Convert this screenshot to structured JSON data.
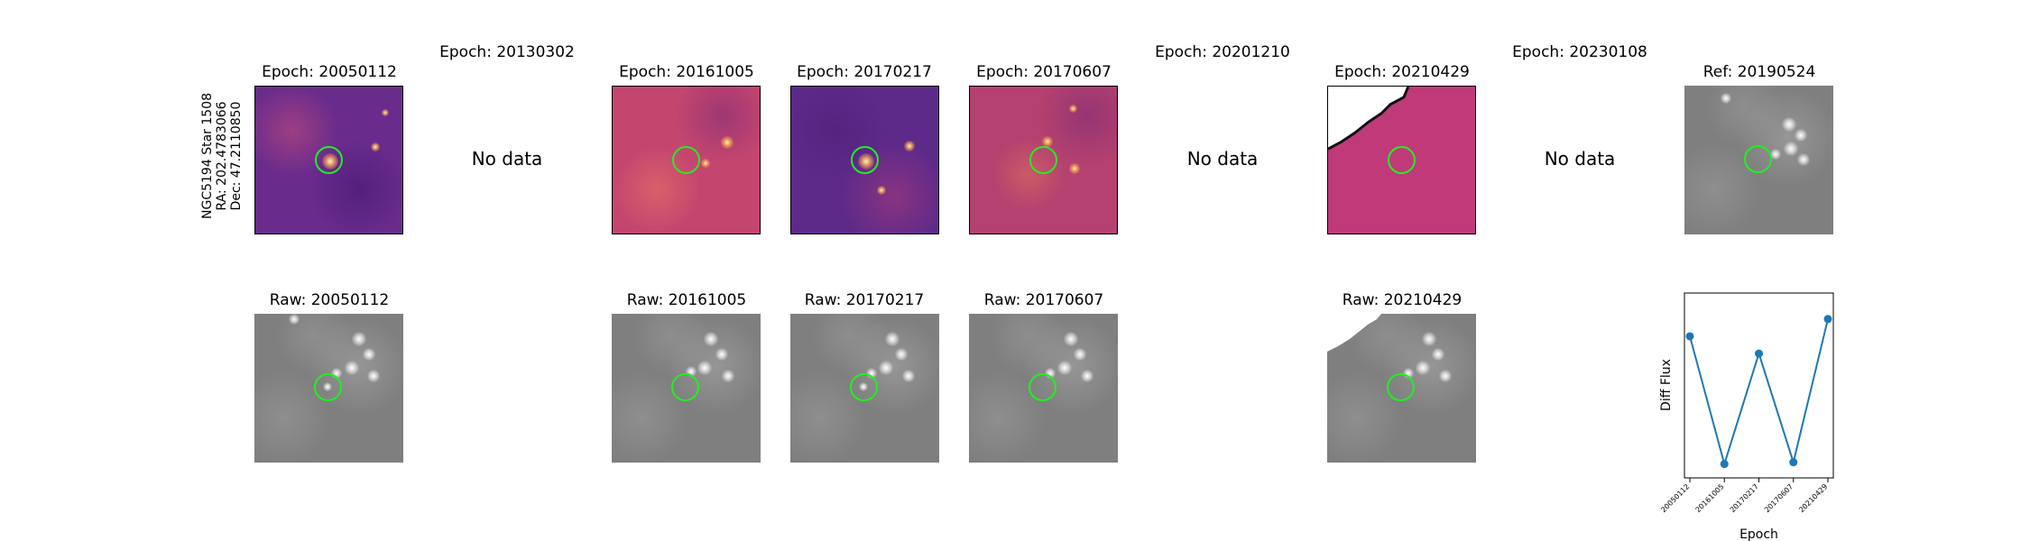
{
  "row_label": {
    "name": "NGC5194 Star 1508",
    "ra": "RA: 202.4783066",
    "dec": "Dec: 47.2110850"
  },
  "diff_titles": [
    "Epoch: 20050112",
    "Epoch: 20130302",
    "Epoch: 20161005",
    "Epoch: 20170217",
    "Epoch: 20170607",
    "Epoch: 20201210",
    "Epoch: 20210429",
    "Epoch: 20230108",
    "Ref: 20190524"
  ],
  "raw_titles": [
    "Raw: 20050112",
    "Raw: 20161005",
    "Raw: 20170217",
    "Raw: 20170607",
    "Raw: 20210429"
  ],
  "no_data_label": "No data",
  "colors": {
    "circle": "#22ee22",
    "line": "#1f77b4"
  },
  "chart_data": {
    "type": "line",
    "x": [
      "20050112",
      "20161005",
      "20170217",
      "20170607",
      "20210429"
    ],
    "series": [
      {
        "values": [
          0.76,
          0.02,
          0.66,
          0.03,
          0.86
        ]
      }
    ],
    "xlabel": "Epoch",
    "ylabel": "Diff Flux",
    "ylim": [
      -0.05,
      1.0
    ],
    "grid": false
  }
}
